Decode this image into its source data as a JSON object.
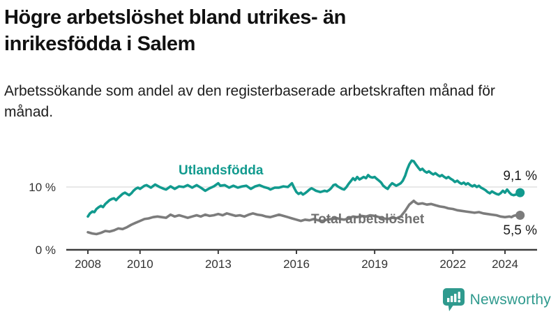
{
  "header": {
    "title": "Högre arbetslöshet bland utrikes- än inrikesfödda i Salem",
    "subtitle": "Arbetssökande som andel av den registerbaserade arbetskraften månad för månad."
  },
  "colors": {
    "foreign_born_line": "#119a8e",
    "total_line": "#7c7c7c",
    "total_label": "#6f6f6f",
    "axis": "#3d3d3d",
    "tick_text": "#333333",
    "gridline": "#e0e0e0",
    "value_text": "#1a1a1a",
    "brand": "#2f9a8e"
  },
  "chart_data": {
    "type": "line",
    "title": "Högre arbetslöshet bland utrikes- än inrikesfödda i Salem",
    "subtitle": "Arbetssökande som andel av den registerbaserade arbetskraften månad för månad.",
    "xlabel": "",
    "ylabel": "",
    "x_ticks": [
      2008,
      2010,
      2013,
      2016,
      2019,
      2022,
      2024
    ],
    "y_ticks": [
      {
        "label": "0 %",
        "value": 0
      },
      {
        "label": "10 %",
        "value": 10
      }
    ],
    "x_range": [
      2008,
      2025.2
    ],
    "y_range": [
      0,
      15
    ],
    "grid": "single-horizontal-line-at-10",
    "legend_position": "inline-labels-on-lines",
    "series": [
      {
        "name": "Utlandsfödda",
        "end_label": "9,1 %",
        "end_value": 9.1,
        "color": "#119a8e",
        "points": [
          [
            2008.0,
            5.3
          ],
          [
            2008.08,
            5.8
          ],
          [
            2008.17,
            6.1
          ],
          [
            2008.25,
            6.0
          ],
          [
            2008.33,
            6.5
          ],
          [
            2008.42,
            6.8
          ],
          [
            2008.5,
            7.0
          ],
          [
            2008.58,
            6.8
          ],
          [
            2008.67,
            7.3
          ],
          [
            2008.75,
            7.6
          ],
          [
            2008.83,
            7.9
          ],
          [
            2008.92,
            8.1
          ],
          [
            2009.0,
            8.2
          ],
          [
            2009.08,
            7.9
          ],
          [
            2009.17,
            8.3
          ],
          [
            2009.25,
            8.6
          ],
          [
            2009.33,
            8.9
          ],
          [
            2009.42,
            9.1
          ],
          [
            2009.5,
            8.9
          ],
          [
            2009.58,
            8.7
          ],
          [
            2009.67,
            9.0
          ],
          [
            2009.75,
            9.4
          ],
          [
            2009.83,
            9.7
          ],
          [
            2009.92,
            9.9
          ],
          [
            2010.0,
            9.7
          ],
          [
            2010.17,
            10.2
          ],
          [
            2010.25,
            10.3
          ],
          [
            2010.42,
            9.9
          ],
          [
            2010.58,
            10.4
          ],
          [
            2010.75,
            10.0
          ],
          [
            2010.92,
            9.7
          ],
          [
            2011.0,
            9.6
          ],
          [
            2011.17,
            10.1
          ],
          [
            2011.33,
            9.7
          ],
          [
            2011.5,
            10.1
          ],
          [
            2011.67,
            10.0
          ],
          [
            2011.83,
            10.3
          ],
          [
            2012.0,
            9.9
          ],
          [
            2012.17,
            10.3
          ],
          [
            2012.33,
            9.9
          ],
          [
            2012.5,
            9.4
          ],
          [
            2012.67,
            9.8
          ],
          [
            2012.83,
            10.1
          ],
          [
            2013.0,
            10.6
          ],
          [
            2013.08,
            10.2
          ],
          [
            2013.25,
            10.3
          ],
          [
            2013.42,
            9.9
          ],
          [
            2013.58,
            10.2
          ],
          [
            2013.75,
            9.9
          ],
          [
            2013.92,
            10.1
          ],
          [
            2014.08,
            10.2
          ],
          [
            2014.25,
            9.7
          ],
          [
            2014.42,
            10.1
          ],
          [
            2014.58,
            10.3
          ],
          [
            2014.75,
            10.0
          ],
          [
            2014.92,
            9.8
          ],
          [
            2015.0,
            9.6
          ],
          [
            2015.17,
            9.9
          ],
          [
            2015.33,
            9.9
          ],
          [
            2015.5,
            10.1
          ],
          [
            2015.67,
            10.0
          ],
          [
            2015.83,
            10.6
          ],
          [
            2015.92,
            9.8
          ],
          [
            2016.0,
            9.2
          ],
          [
            2016.08,
            8.9
          ],
          [
            2016.17,
            9.1
          ],
          [
            2016.25,
            8.8
          ],
          [
            2016.33,
            9.0
          ],
          [
            2016.42,
            9.3
          ],
          [
            2016.5,
            9.6
          ],
          [
            2016.58,
            9.8
          ],
          [
            2016.67,
            9.6
          ],
          [
            2016.75,
            9.4
          ],
          [
            2016.83,
            9.3
          ],
          [
            2016.92,
            9.2
          ],
          [
            2017.0,
            9.3
          ],
          [
            2017.08,
            9.4
          ],
          [
            2017.17,
            9.3
          ],
          [
            2017.25,
            9.5
          ],
          [
            2017.33,
            9.8
          ],
          [
            2017.42,
            10.3
          ],
          [
            2017.5,
            10.4
          ],
          [
            2017.58,
            10.1
          ],
          [
            2017.67,
            9.9
          ],
          [
            2017.75,
            9.7
          ],
          [
            2017.83,
            9.6
          ],
          [
            2017.92,
            10.0
          ],
          [
            2018.0,
            10.5
          ],
          [
            2018.08,
            10.9
          ],
          [
            2018.17,
            11.4
          ],
          [
            2018.25,
            11.1
          ],
          [
            2018.33,
            11.6
          ],
          [
            2018.42,
            11.2
          ],
          [
            2018.5,
            11.4
          ],
          [
            2018.58,
            11.6
          ],
          [
            2018.67,
            11.4
          ],
          [
            2018.75,
            11.9
          ],
          [
            2018.83,
            11.6
          ],
          [
            2018.92,
            11.5
          ],
          [
            2019.0,
            11.6
          ],
          [
            2019.08,
            11.3
          ],
          [
            2019.17,
            11.0
          ],
          [
            2019.25,
            10.7
          ],
          [
            2019.33,
            10.2
          ],
          [
            2019.42,
            9.9
          ],
          [
            2019.5,
            9.7
          ],
          [
            2019.58,
            10.2
          ],
          [
            2019.67,
            10.6
          ],
          [
            2019.75,
            10.4
          ],
          [
            2019.83,
            10.2
          ],
          [
            2019.92,
            10.4
          ],
          [
            2020.0,
            10.6
          ],
          [
            2020.08,
            11.0
          ],
          [
            2020.17,
            11.8
          ],
          [
            2020.25,
            12.8
          ],
          [
            2020.33,
            13.6
          ],
          [
            2020.42,
            14.2
          ],
          [
            2020.5,
            14.1
          ],
          [
            2020.58,
            13.6
          ],
          [
            2020.67,
            13.1
          ],
          [
            2020.75,
            12.7
          ],
          [
            2020.83,
            12.9
          ],
          [
            2020.92,
            12.5
          ],
          [
            2021.0,
            12.3
          ],
          [
            2021.08,
            12.5
          ],
          [
            2021.17,
            12.2
          ],
          [
            2021.25,
            12.0
          ],
          [
            2021.33,
            12.2
          ],
          [
            2021.42,
            11.9
          ],
          [
            2021.5,
            11.7
          ],
          [
            2021.58,
            11.9
          ],
          [
            2021.67,
            11.6
          ],
          [
            2021.75,
            11.4
          ],
          [
            2021.83,
            11.6
          ],
          [
            2021.92,
            11.3
          ],
          [
            2022.0,
            11.1
          ],
          [
            2022.08,
            10.8
          ],
          [
            2022.17,
            11.0
          ],
          [
            2022.25,
            10.7
          ],
          [
            2022.33,
            10.5
          ],
          [
            2022.42,
            10.7
          ],
          [
            2022.5,
            10.4
          ],
          [
            2022.58,
            10.6
          ],
          [
            2022.67,
            10.3
          ],
          [
            2022.75,
            10.1
          ],
          [
            2022.83,
            10.3
          ],
          [
            2022.92,
            10.0
          ],
          [
            2023.0,
            10.2
          ],
          [
            2023.08,
            9.9
          ],
          [
            2023.17,
            9.7
          ],
          [
            2023.25,
            9.5
          ],
          [
            2023.33,
            9.2
          ],
          [
            2023.42,
            9.0
          ],
          [
            2023.5,
            9.3
          ],
          [
            2023.58,
            9.1
          ],
          [
            2023.67,
            8.9
          ],
          [
            2023.75,
            8.8
          ],
          [
            2023.83,
            9.0
          ],
          [
            2023.92,
            9.4
          ],
          [
            2024.0,
            9.1
          ],
          [
            2024.08,
            9.6
          ],
          [
            2024.17,
            9.1
          ],
          [
            2024.25,
            8.8
          ],
          [
            2024.33,
            8.7
          ],
          [
            2024.42,
            8.8
          ],
          [
            2024.5,
            8.9
          ],
          [
            2024.58,
            9.1
          ]
        ]
      },
      {
        "name": "Total arbetslöshet",
        "end_label": "5,5 %",
        "end_value": 5.5,
        "color": "#7c7c7c",
        "points": [
          [
            2008.0,
            2.8
          ],
          [
            2008.17,
            2.6
          ],
          [
            2008.33,
            2.5
          ],
          [
            2008.5,
            2.7
          ],
          [
            2008.67,
            3.0
          ],
          [
            2008.83,
            2.9
          ],
          [
            2009.0,
            3.1
          ],
          [
            2009.17,
            3.4
          ],
          [
            2009.33,
            3.3
          ],
          [
            2009.5,
            3.6
          ],
          [
            2009.67,
            4.0
          ],
          [
            2009.83,
            4.3
          ],
          [
            2010.0,
            4.6
          ],
          [
            2010.17,
            4.9
          ],
          [
            2010.33,
            5.0
          ],
          [
            2010.5,
            5.2
          ],
          [
            2010.67,
            5.3
          ],
          [
            2010.83,
            5.2
          ],
          [
            2011.0,
            5.1
          ],
          [
            2011.17,
            5.6
          ],
          [
            2011.33,
            5.3
          ],
          [
            2011.5,
            5.5
          ],
          [
            2011.67,
            5.3
          ],
          [
            2011.83,
            5.1
          ],
          [
            2012.0,
            5.3
          ],
          [
            2012.17,
            5.5
          ],
          [
            2012.33,
            5.3
          ],
          [
            2012.5,
            5.6
          ],
          [
            2012.67,
            5.4
          ],
          [
            2012.83,
            5.5
          ],
          [
            2013.0,
            5.7
          ],
          [
            2013.17,
            5.5
          ],
          [
            2013.33,
            5.8
          ],
          [
            2013.5,
            5.6
          ],
          [
            2013.67,
            5.4
          ],
          [
            2013.83,
            5.5
          ],
          [
            2014.0,
            5.3
          ],
          [
            2014.17,
            5.6
          ],
          [
            2014.33,
            5.8
          ],
          [
            2014.5,
            5.6
          ],
          [
            2014.67,
            5.5
          ],
          [
            2014.83,
            5.3
          ],
          [
            2015.0,
            5.2
          ],
          [
            2015.17,
            5.4
          ],
          [
            2015.33,
            5.6
          ],
          [
            2015.5,
            5.4
          ],
          [
            2015.67,
            5.2
          ],
          [
            2015.83,
            5.0
          ],
          [
            2016.0,
            4.8
          ],
          [
            2016.17,
            4.6
          ],
          [
            2016.33,
            4.8
          ],
          [
            2016.5,
            4.7
          ],
          [
            2016.67,
            4.9
          ],
          [
            2016.83,
            4.7
          ],
          [
            2017.0,
            4.6
          ],
          [
            2017.17,
            4.8
          ],
          [
            2017.33,
            4.9
          ],
          [
            2017.5,
            5.1
          ],
          [
            2017.67,
            4.9
          ],
          [
            2017.83,
            4.8
          ],
          [
            2018.0,
            5.0
          ],
          [
            2018.17,
            5.3
          ],
          [
            2018.33,
            5.2
          ],
          [
            2018.5,
            5.4
          ],
          [
            2018.67,
            5.3
          ],
          [
            2018.83,
            5.5
          ],
          [
            2019.0,
            5.4
          ],
          [
            2019.17,
            5.2
          ],
          [
            2019.33,
            5.0
          ],
          [
            2019.5,
            4.9
          ],
          [
            2019.67,
            5.1
          ],
          [
            2019.83,
            5.0
          ],
          [
            2020.0,
            5.3
          ],
          [
            2020.17,
            6.2
          ],
          [
            2020.33,
            7.2
          ],
          [
            2020.5,
            7.8
          ],
          [
            2020.58,
            7.5
          ],
          [
            2020.67,
            7.3
          ],
          [
            2020.83,
            7.4
          ],
          [
            2021.0,
            7.2
          ],
          [
            2021.17,
            7.3
          ],
          [
            2021.33,
            7.1
          ],
          [
            2021.5,
            6.9
          ],
          [
            2021.67,
            6.8
          ],
          [
            2021.83,
            6.6
          ],
          [
            2022.0,
            6.5
          ],
          [
            2022.17,
            6.3
          ],
          [
            2022.33,
            6.2
          ],
          [
            2022.5,
            6.1
          ],
          [
            2022.67,
            6.0
          ],
          [
            2022.83,
            5.9
          ],
          [
            2023.0,
            6.0
          ],
          [
            2023.17,
            5.8
          ],
          [
            2023.33,
            5.7
          ],
          [
            2023.5,
            5.6
          ],
          [
            2023.67,
            5.5
          ],
          [
            2023.83,
            5.3
          ],
          [
            2024.0,
            5.2
          ],
          [
            2024.17,
            5.3
          ],
          [
            2024.25,
            5.2
          ],
          [
            2024.33,
            5.4
          ],
          [
            2024.42,
            5.5
          ],
          [
            2024.5,
            5.4
          ],
          [
            2024.58,
            5.5
          ]
        ]
      }
    ]
  },
  "branding": {
    "logo_text": "Newsworthy",
    "logo_icon": "bar-chart-speech-bubble-icon"
  }
}
